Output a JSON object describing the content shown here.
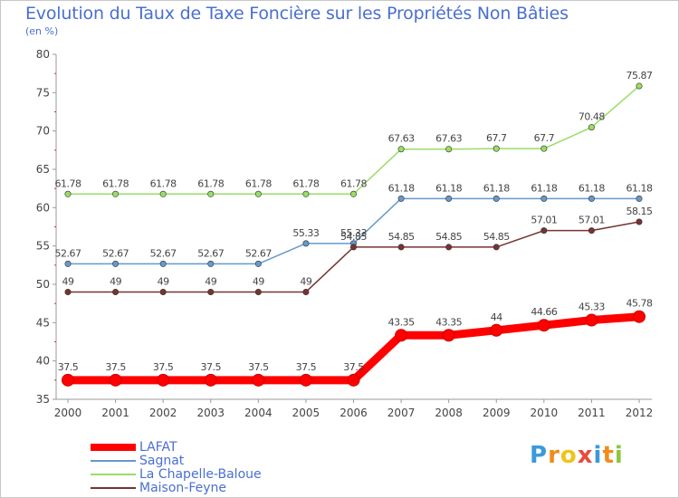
{
  "title": "Evolution du Taux de Taxe Foncière sur les Propriétés Non Bâties",
  "subtitle": "(en %)",
  "logo": {
    "letters": [
      "P",
      "r",
      "o",
      "x",
      "i",
      "t",
      "i"
    ],
    "colors": [
      "#3a9ad9",
      "#f08c1e",
      "#f0c419",
      "#e84c3d",
      "#3a9ad9",
      "#f08c1e",
      "#8cc63f"
    ]
  },
  "chart_data": {
    "type": "line",
    "x": [
      "2000",
      "2001",
      "2002",
      "2003",
      "2004",
      "2005",
      "2006",
      "2007",
      "2008",
      "2009",
      "2010",
      "2011",
      "2012"
    ],
    "ylim": [
      35,
      80
    ],
    "yticks": [
      "35",
      "40",
      "45",
      "50",
      "55",
      "60",
      "65",
      "70",
      "75",
      "80"
    ],
    "grid": false,
    "legend_position": "bottom-left",
    "series": [
      {
        "name": "LAFAT",
        "color": "#ff0000",
        "values": [
          37.5,
          37.5,
          37.5,
          37.5,
          37.5,
          37.5,
          37.5,
          43.35,
          43.35,
          44,
          44.66,
          45.33,
          45.78
        ],
        "labels": [
          "37.5",
          "37.5",
          "37.5",
          "37.5",
          "37.5",
          "37.5",
          "37.5",
          "43.35",
          "43.35",
          "44",
          "44.66",
          "45.33",
          "45.78"
        ]
      },
      {
        "name": "Sagnat",
        "color": "#6699cc",
        "values": [
          52.67,
          52.67,
          52.67,
          52.67,
          52.67,
          55.33,
          55.33,
          61.18,
          61.18,
          61.18,
          61.18,
          61.18,
          61.18
        ],
        "labels": [
          "52.67",
          "52.67",
          "52.67",
          "52.67",
          "52.67",
          "55.33",
          "55.33",
          "61.18",
          "61.18",
          "61.18",
          "61.18",
          "61.18",
          "61.18"
        ]
      },
      {
        "name": "La Chapelle-Baloue",
        "color": "#99dd66",
        "values": [
          61.78,
          61.78,
          61.78,
          61.78,
          61.78,
          61.78,
          61.78,
          67.63,
          67.63,
          67.7,
          67.7,
          70.48,
          75.87
        ],
        "labels": [
          "61.78",
          "61.78",
          "61.78",
          "61.78",
          "61.78",
          "61.78",
          "61.78",
          "67.63",
          "67.63",
          "67.7",
          "67.7",
          "70.48",
          "75.87"
        ]
      },
      {
        "name": "Maison-Feyne",
        "color": "#773333",
        "values": [
          49,
          49,
          49,
          49,
          49,
          49,
          54.85,
          54.85,
          54.85,
          54.85,
          57.01,
          57.01,
          58.15
        ],
        "labels": [
          "49",
          "49",
          "49",
          "49",
          "49",
          "49",
          "54.85",
          "54.85",
          "54.85",
          "54.85",
          "57.01",
          "57.01",
          "58.15"
        ]
      }
    ]
  }
}
